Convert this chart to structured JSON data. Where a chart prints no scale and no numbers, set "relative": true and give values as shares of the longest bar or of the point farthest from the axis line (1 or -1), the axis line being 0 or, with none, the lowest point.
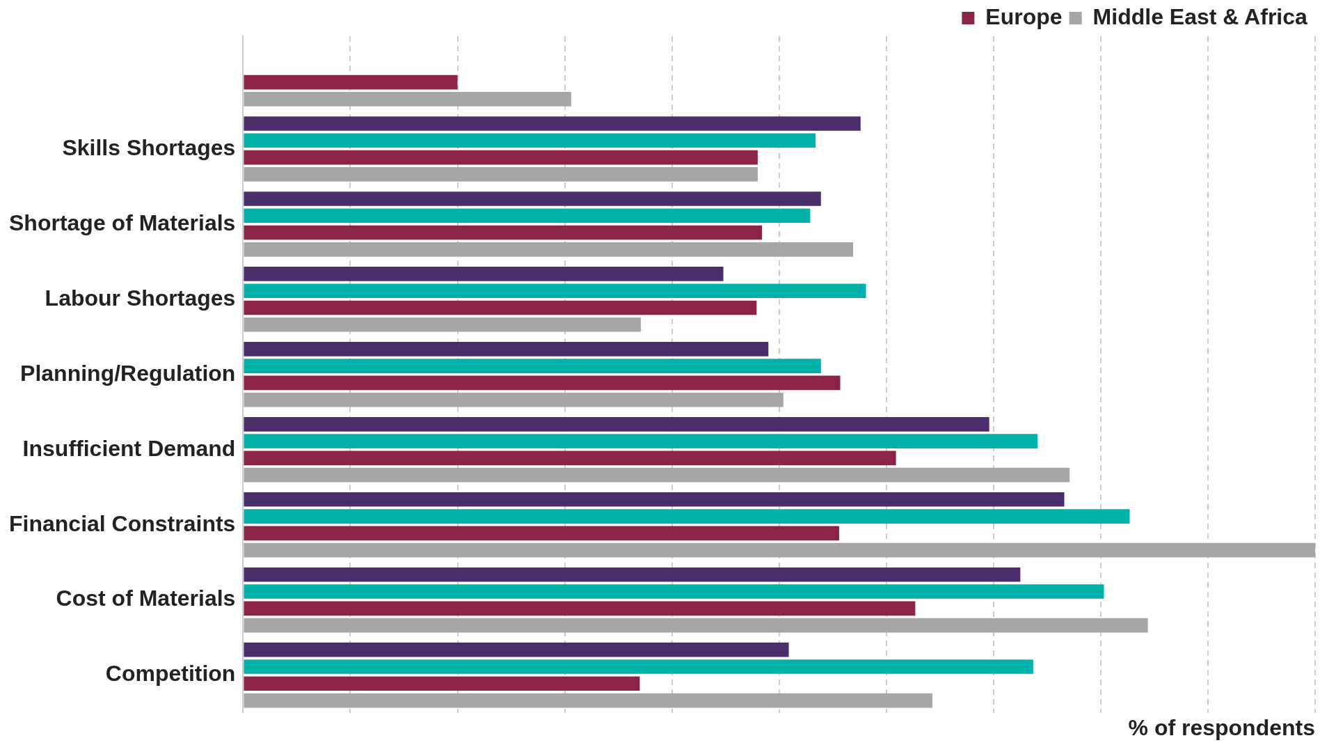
{
  "chart_data": {
    "type": "bar",
    "orientation": "horizontal",
    "relative": true,
    "grid": "x",
    "legend": "top right",
    "xlabel": "% of respondents",
    "categories": [
      null,
      "Skills Shortages",
      "Shortage of Materials",
      "Labour Shortages",
      "Planning/Regulation",
      "Insufficient Demand",
      "Financial Constraints",
      "Cost of Materials",
      "Competition"
    ],
    "series": [
      {
        "color": "#4b2d6b",
        "values": [
          null,
          0.576,
          0.539,
          0.448,
          0.49,
          0.696,
          0.766,
          0.725,
          0.509
        ]
      },
      {
        "color": "#00b2a9",
        "values": [
          null,
          0.534,
          0.529,
          0.581,
          0.539,
          0.741,
          0.827,
          0.803,
          0.737
        ]
      },
      {
        "name": "Europe",
        "color": "#8b2346",
        "values": [
          0.2,
          0.48,
          0.484,
          0.479,
          0.557,
          0.609,
          0.556,
          0.627,
          0.37
        ]
      },
      {
        "name": "Middle East & Africa",
        "color": "#a6a6a6",
        "values": [
          0.306,
          0.48,
          0.569,
          0.371,
          0.504,
          0.771,
          1,
          0.844,
          0.643
        ]
      }
    ]
  }
}
